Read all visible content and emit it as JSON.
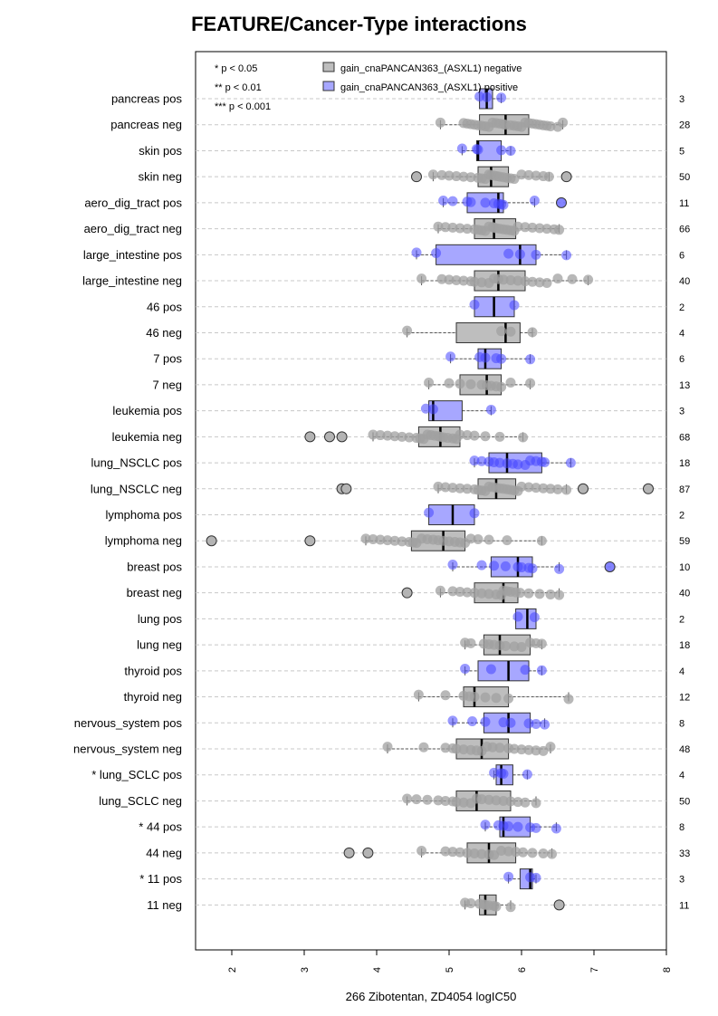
{
  "chart_data": {
    "type": "boxplot",
    "title": "FEATURE/Cancer-Type interactions",
    "xlabel": "266 Zibotentan, ZD4054 logIC50",
    "xlim": [
      1.5,
      8.0
    ],
    "x_ticks": [
      "2",
      "3",
      "4",
      "5",
      "6",
      "7",
      "8"
    ],
    "grid": "horizontal dashed",
    "significance_legend": [
      "* p < 0.05",
      "** p < 0.01",
      "*** p < 0.001"
    ],
    "legend": [
      {
        "name": "gain_cnaPANCAN363_(ASXL1) negative",
        "color": "#bebebe"
      },
      {
        "name": "gain_cnaPANCAN363_(ASXL1) positive",
        "color": "#a7a7ff"
      }
    ],
    "rows": [
      {
        "label": "pancreas pos",
        "n": "3",
        "group": "pos",
        "q1": 5.42,
        "median": 5.52,
        "q3": 5.6,
        "wlo": 5.42,
        "whi": 5.72,
        "points": [
          5.42,
          5.52,
          5.72
        ],
        "outliers": []
      },
      {
        "label": "pancreas neg",
        "n": "28",
        "group": "neg",
        "q1": 5.42,
        "median": 5.78,
        "q3": 6.1,
        "wlo": 4.88,
        "whi": 6.57,
        "points": [
          4.88,
          5.2,
          5.25,
          5.3,
          5.35,
          5.4,
          5.45,
          5.5,
          5.55,
          5.6,
          5.65,
          5.7,
          5.75,
          5.78,
          5.85,
          5.9,
          5.95,
          6.0,
          6.05,
          6.1,
          6.15,
          6.2,
          6.25,
          6.3,
          6.35,
          6.4,
          6.5,
          6.57
        ],
        "outliers": []
      },
      {
        "label": "skin pos",
        "n": "5",
        "group": "pos",
        "q1": 5.38,
        "median": 5.4,
        "q3": 5.72,
        "wlo": 5.18,
        "whi": 5.85,
        "points": [
          5.18,
          5.38,
          5.4,
          5.72,
          5.85
        ],
        "outliers": []
      },
      {
        "label": "skin neg",
        "n": "50",
        "group": "neg",
        "q1": 5.4,
        "median": 5.58,
        "q3": 5.82,
        "wlo": 4.78,
        "whi": 6.38,
        "points": [
          4.78,
          4.9,
          5.0,
          5.1,
          5.2,
          5.3,
          5.4,
          5.45,
          5.5,
          5.55,
          5.58,
          5.62,
          5.66,
          5.7,
          5.75,
          5.8,
          5.85,
          5.9,
          6.0,
          6.1,
          6.2,
          6.3,
          6.38
        ],
        "outliers": [
          4.55,
          6.62
        ]
      },
      {
        "label": "aero_dig_tract pos",
        "n": "11",
        "group": "pos",
        "q1": 5.25,
        "median": 5.68,
        "q3": 5.75,
        "wlo": 4.92,
        "whi": 6.18,
        "points": [
          4.92,
          5.05,
          5.25,
          5.3,
          5.5,
          5.62,
          5.68,
          5.72,
          5.75,
          6.18
        ],
        "outliers": [
          6.55
        ]
      },
      {
        "label": "aero_dig_tract neg",
        "n": "66",
        "group": "neg",
        "q1": 5.35,
        "median": 5.62,
        "q3": 5.92,
        "wlo": 4.85,
        "whi": 6.52,
        "points": [
          4.85,
          4.95,
          5.05,
          5.15,
          5.25,
          5.35,
          5.4,
          5.45,
          5.5,
          5.55,
          5.6,
          5.62,
          5.65,
          5.7,
          5.75,
          5.8,
          5.85,
          5.9,
          5.95,
          6.05,
          6.15,
          6.25,
          6.35,
          6.45,
          6.52
        ],
        "outliers": []
      },
      {
        "label": "large_intestine pos",
        "n": "6",
        "group": "pos",
        "q1": 4.82,
        "median": 5.98,
        "q3": 6.2,
        "wlo": 4.55,
        "whi": 6.62,
        "points": [
          4.55,
          4.82,
          5.82,
          5.98,
          6.2,
          6.62
        ],
        "outliers": []
      },
      {
        "label": "large_intestine neg",
        "n": "40",
        "group": "neg",
        "q1": 5.35,
        "median": 5.68,
        "q3": 6.05,
        "wlo": 4.62,
        "whi": 6.92,
        "points": [
          4.62,
          4.9,
          5.0,
          5.1,
          5.2,
          5.3,
          5.35,
          5.45,
          5.55,
          5.62,
          5.68,
          5.75,
          5.85,
          5.95,
          6.05,
          6.15,
          6.25,
          6.35,
          6.5,
          6.7,
          6.92
        ],
        "outliers": []
      },
      {
        "label": "46 pos",
        "n": "2",
        "group": "pos",
        "q1": 5.35,
        "median": 5.62,
        "q3": 5.9,
        "wlo": 5.35,
        "whi": 5.9,
        "points": [
          5.35,
          5.9
        ],
        "outliers": []
      },
      {
        "label": "46 neg",
        "n": "4",
        "group": "neg",
        "q1": 5.1,
        "median": 5.78,
        "q3": 5.98,
        "wlo": 4.42,
        "whi": 6.15,
        "points": [
          4.42,
          5.72,
          5.85,
          6.15
        ],
        "outliers": []
      },
      {
        "label": "7 pos",
        "n": "6",
        "group": "pos",
        "q1": 5.4,
        "median": 5.5,
        "q3": 5.72,
        "wlo": 5.02,
        "whi": 6.12,
        "points": [
          5.02,
          5.42,
          5.5,
          5.65,
          5.72,
          6.12
        ],
        "outliers": []
      },
      {
        "label": "7 neg",
        "n": "13",
        "group": "neg",
        "q1": 5.15,
        "median": 5.52,
        "q3": 5.72,
        "wlo": 4.72,
        "whi": 6.12,
        "points": [
          4.72,
          5.0,
          5.15,
          5.3,
          5.45,
          5.52,
          5.58,
          5.65,
          5.72,
          5.85,
          6.12
        ],
        "outliers": []
      },
      {
        "label": "leukemia pos",
        "n": "3",
        "group": "pos",
        "q1": 4.72,
        "median": 4.78,
        "q3": 5.18,
        "wlo": 4.72,
        "whi": 5.58,
        "points": [
          4.68,
          4.78,
          5.58
        ],
        "outliers": []
      },
      {
        "label": "leukemia neg",
        "n": "68",
        "group": "neg",
        "q1": 4.58,
        "median": 4.88,
        "q3": 5.15,
        "wlo": 3.95,
        "whi": 6.02,
        "points": [
          3.95,
          4.05,
          4.15,
          4.25,
          4.35,
          4.45,
          4.55,
          4.6,
          4.65,
          4.7,
          4.75,
          4.8,
          4.85,
          4.88,
          4.92,
          4.98,
          5.05,
          5.1,
          5.15,
          5.25,
          5.35,
          5.5,
          5.7,
          6.02
        ],
        "outliers": [
          3.08,
          3.35,
          3.52
        ]
      },
      {
        "label": "lung_NSCLC pos",
        "n": "18",
        "group": "pos",
        "q1": 5.55,
        "median": 5.8,
        "q3": 6.28,
        "wlo": 5.35,
        "whi": 6.68,
        "points": [
          5.35,
          5.45,
          5.55,
          5.62,
          5.7,
          5.8,
          5.88,
          5.95,
          6.05,
          6.12,
          6.2,
          6.28,
          6.32,
          6.68
        ],
        "outliers": []
      },
      {
        "label": "lung_NSCLC neg",
        "n": "87",
        "group": "neg",
        "q1": 5.4,
        "median": 5.65,
        "q3": 5.92,
        "wlo": 4.85,
        "whi": 6.62,
        "points": [
          4.85,
          4.95,
          5.05,
          5.15,
          5.25,
          5.35,
          5.4,
          5.45,
          5.5,
          5.55,
          5.6,
          5.65,
          5.7,
          5.75,
          5.8,
          5.85,
          5.9,
          5.95,
          6.0,
          6.1,
          6.2,
          6.3,
          6.4,
          6.5,
          6.62
        ],
        "outliers": [
          3.52,
          3.58,
          6.85,
          7.75
        ]
      },
      {
        "label": "lymphoma pos",
        "n": "2",
        "group": "pos",
        "q1": 4.72,
        "median": 5.05,
        "q3": 5.35,
        "wlo": 4.72,
        "whi": 5.35,
        "points": [
          4.72,
          5.35
        ],
        "outliers": []
      },
      {
        "label": "lymphoma neg",
        "n": "59",
        "group": "neg",
        "q1": 4.48,
        "median": 4.92,
        "q3": 5.22,
        "wlo": 3.85,
        "whi": 6.28,
        "points": [
          3.85,
          3.95,
          4.05,
          4.15,
          4.25,
          4.35,
          4.45,
          4.5,
          4.55,
          4.62,
          4.7,
          4.78,
          4.85,
          4.92,
          5.0,
          5.08,
          5.15,
          5.22,
          5.3,
          5.4,
          5.55,
          5.8,
          6.28
        ],
        "outliers": [
          1.72,
          3.08
        ]
      },
      {
        "label": "breast pos",
        "n": "10",
        "group": "pos",
        "q1": 5.58,
        "median": 5.95,
        "q3": 6.15,
        "wlo": 5.05,
        "whi": 6.52,
        "points": [
          5.05,
          5.45,
          5.62,
          5.78,
          5.95,
          6.0,
          6.1,
          6.15,
          6.52
        ],
        "outliers": [
          7.22
        ]
      },
      {
        "label": "breast neg",
        "n": "40",
        "group": "neg",
        "q1": 5.35,
        "median": 5.75,
        "q3": 5.95,
        "wlo": 4.88,
        "whi": 6.52,
        "points": [
          4.88,
          5.05,
          5.15,
          5.25,
          5.35,
          5.45,
          5.55,
          5.65,
          5.72,
          5.75,
          5.8,
          5.85,
          5.92,
          5.98,
          6.1,
          6.25,
          6.4,
          6.52
        ],
        "outliers": [
          4.42
        ]
      },
      {
        "label": "lung pos",
        "n": "2",
        "group": "pos",
        "q1": 5.92,
        "median": 6.08,
        "q3": 6.2,
        "wlo": 5.92,
        "whi": 6.2,
        "points": [
          5.95,
          6.18
        ],
        "outliers": []
      },
      {
        "label": "lung neg",
        "n": "18",
        "group": "neg",
        "q1": 5.48,
        "median": 5.7,
        "q3": 6.12,
        "wlo": 5.22,
        "whi": 6.28,
        "points": [
          5.22,
          5.3,
          5.48,
          5.55,
          5.62,
          5.7,
          5.78,
          5.9,
          6.0,
          6.12,
          6.2,
          6.28
        ],
        "outliers": []
      },
      {
        "label": "thyroid pos",
        "n": "4",
        "group": "pos",
        "q1": 5.4,
        "median": 5.82,
        "q3": 6.1,
        "wlo": 5.22,
        "whi": 6.28,
        "points": [
          5.22,
          5.58,
          6.05,
          6.28
        ],
        "outliers": []
      },
      {
        "label": "thyroid neg",
        "n": "12",
        "group": "neg",
        "q1": 5.2,
        "median": 5.35,
        "q3": 5.82,
        "wlo": 4.58,
        "whi": 6.65,
        "points": [
          4.58,
          4.95,
          5.2,
          5.28,
          5.35,
          5.5,
          5.65,
          5.82,
          6.65
        ],
        "outliers": []
      },
      {
        "label": "nervous_system pos",
        "n": "8",
        "group": "pos",
        "q1": 5.48,
        "median": 5.82,
        "q3": 6.12,
        "wlo": 5.05,
        "whi": 6.32,
        "points": [
          5.05,
          5.32,
          5.5,
          5.75,
          5.85,
          6.1,
          6.2,
          6.32
        ],
        "outliers": []
      },
      {
        "label": "nervous_system neg",
        "n": "48",
        "group": "neg",
        "q1": 5.1,
        "median": 5.45,
        "q3": 5.82,
        "wlo": 4.15,
        "whi": 6.4,
        "points": [
          4.15,
          4.65,
          4.95,
          5.05,
          5.1,
          5.2,
          5.3,
          5.38,
          5.45,
          5.52,
          5.6,
          5.7,
          5.82,
          5.9,
          6.0,
          6.1,
          6.2,
          6.3,
          6.4
        ],
        "outliers": []
      },
      {
        "label": "* lung_SCLC pos",
        "n": "4",
        "group": "pos",
        "q1": 5.65,
        "median": 5.72,
        "q3": 5.88,
        "wlo": 5.62,
        "whi": 6.08,
        "points": [
          5.62,
          5.72,
          5.75,
          6.08
        ],
        "outliers": []
      },
      {
        "label": "lung_SCLC neg",
        "n": "50",
        "group": "neg",
        "q1": 5.1,
        "median": 5.38,
        "q3": 5.85,
        "wlo": 4.42,
        "whi": 6.2,
        "points": [
          4.42,
          4.55,
          4.7,
          4.85,
          4.95,
          5.05,
          5.1,
          5.2,
          5.3,
          5.38,
          5.45,
          5.55,
          5.65,
          5.75,
          5.85,
          5.95,
          6.05,
          6.2
        ],
        "outliers": []
      },
      {
        "label": "* 44 pos",
        "n": "8",
        "group": "pos",
        "q1": 5.7,
        "median": 5.75,
        "q3": 6.12,
        "wlo": 5.5,
        "whi": 6.48,
        "points": [
          5.5,
          5.68,
          5.75,
          5.82,
          5.95,
          6.12,
          6.2,
          6.48
        ],
        "outliers": []
      },
      {
        "label": "44 neg",
        "n": "33",
        "group": "neg",
        "q1": 5.25,
        "median": 5.55,
        "q3": 5.92,
        "wlo": 4.62,
        "whi": 6.42,
        "points": [
          4.62,
          4.95,
          5.05,
          5.15,
          5.25,
          5.35,
          5.45,
          5.55,
          5.62,
          5.72,
          5.82,
          5.92,
          6.02,
          6.15,
          6.3,
          6.42
        ],
        "outliers": [
          3.62,
          3.88
        ]
      },
      {
        "label": "* 11 pos",
        "n": "3",
        "group": "pos",
        "q1": 5.98,
        "median": 6.12,
        "q3": 6.15,
        "wlo": 5.82,
        "whi": 6.2,
        "points": [
          5.82,
          6.12,
          6.2
        ],
        "outliers": []
      },
      {
        "label": "11 neg",
        "n": "11",
        "group": "neg",
        "q1": 5.42,
        "median": 5.5,
        "q3": 5.65,
        "wlo": 5.22,
        "whi": 5.85,
        "points": [
          5.22,
          5.3,
          5.42,
          5.48,
          5.5,
          5.55,
          5.62,
          5.65,
          5.85
        ],
        "outliers": [
          6.52
        ]
      }
    ]
  }
}
